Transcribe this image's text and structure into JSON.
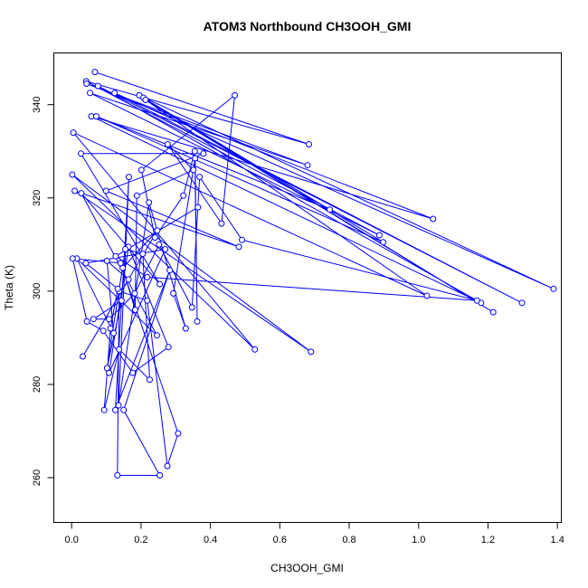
{
  "chart_data": {
    "type": "scatter",
    "title": "ATOM3 Northbound CH3OOH_GMI",
    "xlabel": "CH3OOH_GMI",
    "ylabel": "Theta (K)",
    "xlim": [
      -0.05,
      1.41
    ],
    "ylim": [
      250.5,
      351
    ],
    "x_ticks": [
      0.0,
      0.2,
      0.4,
      0.6,
      0.8,
      1.0,
      1.2,
      1.4
    ],
    "x_tick_labels": [
      "0.0",
      "0.2",
      "0.4",
      "0.6",
      "0.8",
      "1.0",
      "1.2",
      "1.4"
    ],
    "y_ticks": [
      260,
      280,
      300,
      320,
      340
    ],
    "y_tick_labels": [
      "260",
      "280",
      "300",
      "320",
      "340"
    ],
    "grid": false,
    "legend": "none",
    "series_style": {
      "color": "#0000ff",
      "marker": "open-circle",
      "connected": true
    },
    "series": [
      {
        "x": [
          0.067,
          0.684,
          0.042,
          0.887,
          0.053,
          0.68,
          0.043,
          1.042,
          0.057,
          1.18,
          0.076,
          1.298,
          0.124,
          1.389,
          0.195,
          0.744,
          0.071,
          0.898,
          0.207,
          1.215,
          0.213,
          1.024,
          0.005,
          0.528,
          0.002,
          0.69,
          0.009,
          0.482,
          0.099,
          0.38,
          0.027,
          0.254,
          0.028,
          0.246,
          0.015,
          0.121,
          0.102,
          0.164,
          0.032,
          0.247,
          0.147,
          0.183,
          0.188,
          0.351,
          0.277,
          0.432,
          0.47,
          0.201,
          0.24,
          0.322,
          0.355,
          0.362,
          0.356,
          0.293,
          0.329,
          0.223,
          0.135,
          0.165,
          0.126,
          0.283,
          0.15,
          0.254,
          0.132,
          0.137,
          0.218,
          0.276,
          0.307,
          0.141,
          0.003,
          0.044,
          0.091,
          0.176,
          0.279,
          0.164,
          0.108,
          0.27,
          0.041,
          0.133,
          0.112,
          0.094,
          0.137,
          0.225,
          0.205,
          0.155,
          0.102,
          0.144,
          0.063,
          0.108,
          0.182,
          0.252,
          0.347,
          0.369,
          0.491,
          1.168,
          0.218,
          0.127,
          0.364
        ],
        "y": [
          347.0,
          331.5,
          345.0,
          312.0,
          342.5,
          327.0,
          344.5,
          315.5,
          337.5,
          297.5,
          344.0,
          297.5,
          342.5,
          300.5,
          342.0,
          317.5,
          337.5,
          310.5,
          341.5,
          295.5,
          341.0,
          299.0,
          334.0,
          287.5,
          325.0,
          287.0,
          321.5,
          309.5,
          321.5,
          329.5,
          329.5,
          301.5,
          321.0,
          290.5,
          307.0,
          291.0,
          306.5,
          302.5,
          286.0,
          313.0,
          305.0,
          296.0,
          320.5,
          326.0,
          331.5,
          314.5,
          342.0,
          326.0,
          311.5,
          320.5,
          330.0,
          293.5,
          328.5,
          299.5,
          292.0,
          319.0,
          275.5,
          324.5,
          274.5,
          304.5,
          274.5,
          260.5,
          260.5,
          300.0,
          298.0,
          262.5,
          269.5,
          306.0,
          307.0,
          293.5,
          291.5,
          282.5,
          288.0,
          309.5,
          282.5,
          309.0,
          306.0,
          300.5,
          292.0,
          274.5,
          287.5,
          281.0,
          308.0,
          309.0,
          283.5,
          298.0,
          294.0,
          294.0,
          299.5,
          310.0,
          296.5,
          324.5,
          311.0,
          298.0,
          303.0,
          307.5,
          318.0
        ]
      }
    ]
  }
}
